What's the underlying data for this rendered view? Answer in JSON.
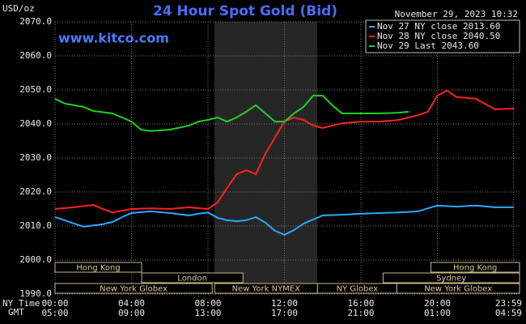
{
  "chart_data": {
    "type": "line",
    "title": "24 Hour Spot Gold (Bid)",
    "subtitle": "www.kitco.com",
    "timestamp": "November 29, 2023 10:32",
    "y_label": "USD/oz",
    "x_label": "NY Time",
    "x2_label": "GMT",
    "xlim": [
      0,
      24
    ],
    "xticks": [
      {
        "value": 0,
        "label": "00:00"
      },
      {
        "value": 4,
        "label": "04:00"
      },
      {
        "value": 8,
        "label": "08:00"
      },
      {
        "value": 12,
        "label": "12:00"
      },
      {
        "value": 16,
        "label": "16:00"
      },
      {
        "value": 20,
        "label": "20:00"
      },
      {
        "value": 23.983,
        "label": "23:59"
      }
    ],
    "gmt_labels": [
      "05:00",
      "09:00",
      "13:00",
      "17:00",
      "21:00",
      "01:00",
      "04:59"
    ],
    "ylim": [
      1990,
      2070
    ],
    "yticks": [
      {
        "value": 1990,
        "label": "1990.0"
      },
      {
        "value": 2000,
        "label": "2000.0"
      },
      {
        "value": 2010,
        "label": "2010.0"
      },
      {
        "value": 2020,
        "label": "2020.0"
      },
      {
        "value": 2030,
        "label": "2030.0"
      },
      {
        "value": 2040,
        "label": "2040.0"
      },
      {
        "value": 2050,
        "label": "2050.0"
      },
      {
        "value": 2060,
        "label": "2060.0"
      },
      {
        "value": 2070,
        "label": "2070.0"
      }
    ],
    "grid": true,
    "legend": "top-right",
    "series": [
      {
        "name": "Nov 27 NY close 2013.60",
        "color": "#29a8ff",
        "x": [
          0,
          0.5,
          1,
          1.5,
          2,
          2.5,
          3,
          3.5,
          4,
          5,
          6,
          7,
          7.5,
          8,
          8.5,
          9,
          9.5,
          10,
          10.5,
          11,
          11.5,
          12,
          12.5,
          13,
          13.5,
          14,
          15,
          16,
          17,
          18,
          19,
          19.5,
          20,
          21,
          22,
          23,
          24
        ],
        "values": [
          2012.6,
          2011.7,
          2010.7,
          2009.8,
          2010.2,
          2010.5,
          2011.2,
          2012.6,
          2013.8,
          2014.3,
          2013.8,
          2013.1,
          2013.6,
          2014.0,
          2012.4,
          2011.7,
          2011.4,
          2011.7,
          2012.6,
          2011.0,
          2008.6,
          2007.4,
          2008.8,
          2010.7,
          2011.9,
          2013.1,
          2013.3,
          2013.6,
          2013.8,
          2014.0,
          2014.3,
          2015.2,
          2016.0,
          2015.7,
          2016.0,
          2015.5,
          2015.5
        ]
      },
      {
        "name": "Nov 28 NY close 2040.50",
        "color": "#ff2020",
        "x": [
          0,
          1,
          2,
          2.5,
          3,
          4,
          5,
          6,
          7,
          8,
          8.5,
          9,
          9.5,
          10,
          10.5,
          11,
          11.5,
          12,
          12.5,
          13,
          13.5,
          14,
          15,
          16,
          17,
          18,
          19,
          19.5,
          20,
          20.5,
          21,
          22,
          23,
          24
        ],
        "values": [
          2015.0,
          2015.5,
          2016.2,
          2015.0,
          2014.0,
          2015.0,
          2015.2,
          2015.0,
          2015.5,
          2015.0,
          2016.9,
          2021.2,
          2025.2,
          2026.4,
          2025.2,
          2031.2,
          2036.0,
          2040.7,
          2041.9,
          2041.2,
          2039.5,
          2038.8,
          2040.2,
          2040.7,
          2040.7,
          2041.2,
          2042.6,
          2043.6,
          2048.3,
          2049.8,
          2047.9,
          2047.4,
          2044.3,
          2044.5
        ]
      },
      {
        "name": "Nov 29 Last 2043.60",
        "color": "#20d020",
        "x": [
          0,
          0.5,
          1,
          1.5,
          2,
          3,
          3.5,
          4,
          4.5,
          5,
          6,
          7,
          7.5,
          8,
          8.5,
          9,
          9.5,
          10,
          10.5,
          11,
          11.5,
          12,
          12.5,
          13,
          13.5,
          14,
          14.5,
          15,
          16,
          17,
          18,
          18.5
        ],
        "values": [
          2047.4,
          2046.0,
          2045.5,
          2045.0,
          2043.8,
          2043.1,
          2041.9,
          2040.7,
          2038.3,
          2037.9,
          2038.3,
          2039.5,
          2040.7,
          2041.2,
          2041.9,
          2040.7,
          2041.9,
          2043.6,
          2045.5,
          2043.1,
          2040.7,
          2040.7,
          2043.1,
          2045.0,
          2048.3,
          2048.3,
          2045.5,
          2043.1,
          2043.1,
          2043.1,
          2043.3,
          2043.6
        ]
      }
    ],
    "sessions": [
      {
        "label": "Hong Kong",
        "start": 0,
        "end": 4.53
      },
      {
        "label": "Hong Kong",
        "start": 19.66,
        "end": 24
      },
      {
        "label": "London",
        "start": 4.53,
        "end": 9.83
      },
      {
        "label": "Sydney",
        "start": 17.16,
        "end": 24
      },
      {
        "label": "New York Globex",
        "start": 0,
        "end": 8.22
      },
      {
        "label": "New York NYMEX",
        "start": 8.35,
        "end": 13.73
      },
      {
        "label": "NY Globex",
        "start": 13.73,
        "end": 17.88
      },
      {
        "label": "New York Globex",
        "start": 17.88,
        "end": 24
      }
    ]
  }
}
